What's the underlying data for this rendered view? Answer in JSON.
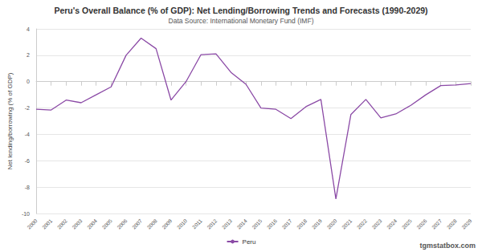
{
  "chart_data": {
    "type": "line",
    "title": "Peru's Overall Balance (% of GDP): Net Lending/Borrowing Trends and Forecasts (1990-2029)",
    "subtitle": "Data Source: International Monetary Fund (IMF)",
    "y_label": "Net lending/borrowing (% of GDP)",
    "annotations": [
      "tgmstatbox.com"
    ],
    "categories": [
      "2000",
      "2001",
      "2002",
      "2003",
      "2004",
      "2005",
      "2006",
      "2007",
      "2008",
      "2009",
      "2010",
      "2011",
      "2012",
      "2013",
      "2014",
      "2015",
      "2016",
      "2017",
      "2018",
      "2019",
      "2020",
      "2021",
      "2022",
      "2023",
      "2024",
      "2025",
      "2026",
      "2027",
      "2028",
      "2029"
    ],
    "series": [
      {
        "name": "Peru",
        "color": "#8b4aa6",
        "values": [
          -2.1,
          -2.15,
          -1.4,
          -1.6,
          -1.0,
          -0.4,
          2.0,
          3.3,
          2.5,
          -1.4,
          0.0,
          2.05,
          2.1,
          0.7,
          -0.2,
          -2.0,
          -2.1,
          -2.8,
          -1.9,
          -1.35,
          -8.9,
          -2.5,
          -1.35,
          -2.75,
          -2.45,
          -1.8,
          -1.0,
          -0.3,
          -0.25,
          -0.15
        ]
      }
    ],
    "ylim": [
      -10,
      4
    ],
    "yticks": [
      -10,
      -8,
      -6,
      -4,
      -2,
      0,
      2,
      4
    ],
    "grid": true,
    "legend": "bottom"
  }
}
